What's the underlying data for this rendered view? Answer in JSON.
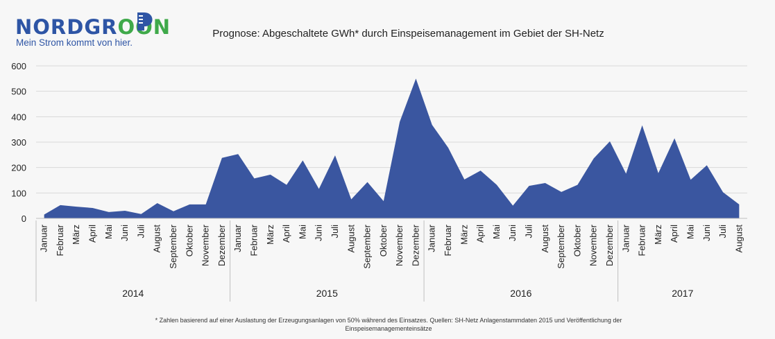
{
  "logo": {
    "word_part1": "NORDGR",
    "word_part2": "OON",
    "tagline": "Mein Strom kommt von hier."
  },
  "colors": {
    "area": "#3a56a0",
    "brand_blue": "#2e55a5",
    "brand_green": "#3fa94a",
    "grid": "#d9d9d9"
  },
  "chart_data": {
    "type": "area",
    "title": "Prognose: Abgeschaltete GWh* durch Einspeisemanagement im Gebiet  der SH-Netz",
    "ylim": [
      0,
      600
    ],
    "yticks": [
      0,
      100,
      200,
      300,
      400,
      500,
      600
    ],
    "grid": true,
    "x": [
      "Januar",
      "Februar",
      "März",
      "April",
      "Mai",
      "Juni",
      "Juli",
      "August",
      "September",
      "Oktober",
      "November",
      "Dezember",
      "Januar",
      "Februar",
      "März",
      "April",
      "Mai",
      "Juni",
      "Juli",
      "August",
      "September",
      "Oktober",
      "November",
      "Dezember",
      "Januar",
      "Februar",
      "März",
      "April",
      "Mai",
      "Juni",
      "Juli",
      "August",
      "September",
      "Oktober",
      "November",
      "Dezember",
      "Januar",
      "Februar",
      "März",
      "April",
      "Mai",
      "Juni",
      "Juli",
      "August"
    ],
    "year_groups": [
      {
        "label": "2014",
        "count": 12
      },
      {
        "label": "2015",
        "count": 12
      },
      {
        "label": "2016",
        "count": 12
      },
      {
        "label": "2017",
        "count": 8
      }
    ],
    "series": [
      {
        "values": [
          15,
          52,
          46,
          41,
          25,
          30,
          17,
          60,
          28,
          55,
          55,
          238,
          253,
          157,
          172,
          132,
          228,
          116,
          248,
          75,
          143,
          68,
          380,
          550,
          368,
          278,
          153,
          188,
          132,
          50,
          128,
          139,
          104,
          132,
          236,
          303,
          176,
          366,
          178,
          315,
          152,
          209,
          103,
          55
        ]
      }
    ]
  },
  "footnote": {
    "line1": "* Zahlen basierend auf einer Auslastung der Erzeugungsanlagen von 50% während des Einsatzes. Quellen: SH-Netz Anlagenstammdaten 2015 und Veröffentlichung der",
    "line2": "Einspeisemanagementeinsätze"
  }
}
